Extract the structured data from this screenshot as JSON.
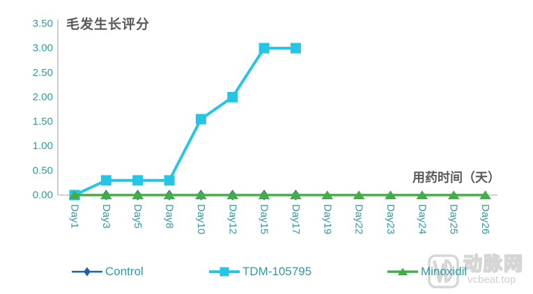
{
  "chart_data": {
    "type": "line",
    "title": "毛发生长评分",
    "x_axis_label": "用药时间（天）",
    "categories": [
      "Day1",
      "Day3",
      "Day5",
      "Day8",
      "Day10",
      "Day12",
      "Day15",
      "Day17",
      "Day19",
      "Day22",
      "Day23",
      "Day24",
      "Day25",
      "Day26"
    ],
    "y_axis": {
      "min": 0,
      "max": 3.5,
      "step": 0.5,
      "decimals": 2
    },
    "series": [
      {
        "name": "Control",
        "color": "#1F5EA8",
        "marker": "diamond",
        "values": [
          0,
          0,
          0,
          0,
          0,
          0,
          0,
          0,
          null,
          null,
          null,
          null,
          null,
          null
        ]
      },
      {
        "name": "TDM-105795",
        "color": "#25C5E6",
        "marker": "square",
        "values": [
          0,
          0.3,
          0.3,
          0.3,
          1.55,
          2.0,
          3.0,
          3.0,
          null,
          null,
          null,
          null,
          null,
          null
        ]
      },
      {
        "name": "Minoxidil",
        "color": "#42AD49",
        "marker": "triangle",
        "values": [
          0,
          0,
          0,
          0,
          0,
          0,
          0,
          0,
          0,
          0,
          0,
          0,
          0,
          0
        ]
      }
    ],
    "legend_position": "bottom",
    "grid": false,
    "colors": {
      "axis_line": "#C9C9C9",
      "tick_label": "#31999F",
      "title_text": "#595959"
    }
  },
  "watermark": {
    "name": "动脉网",
    "site": "vcbeat.top"
  }
}
